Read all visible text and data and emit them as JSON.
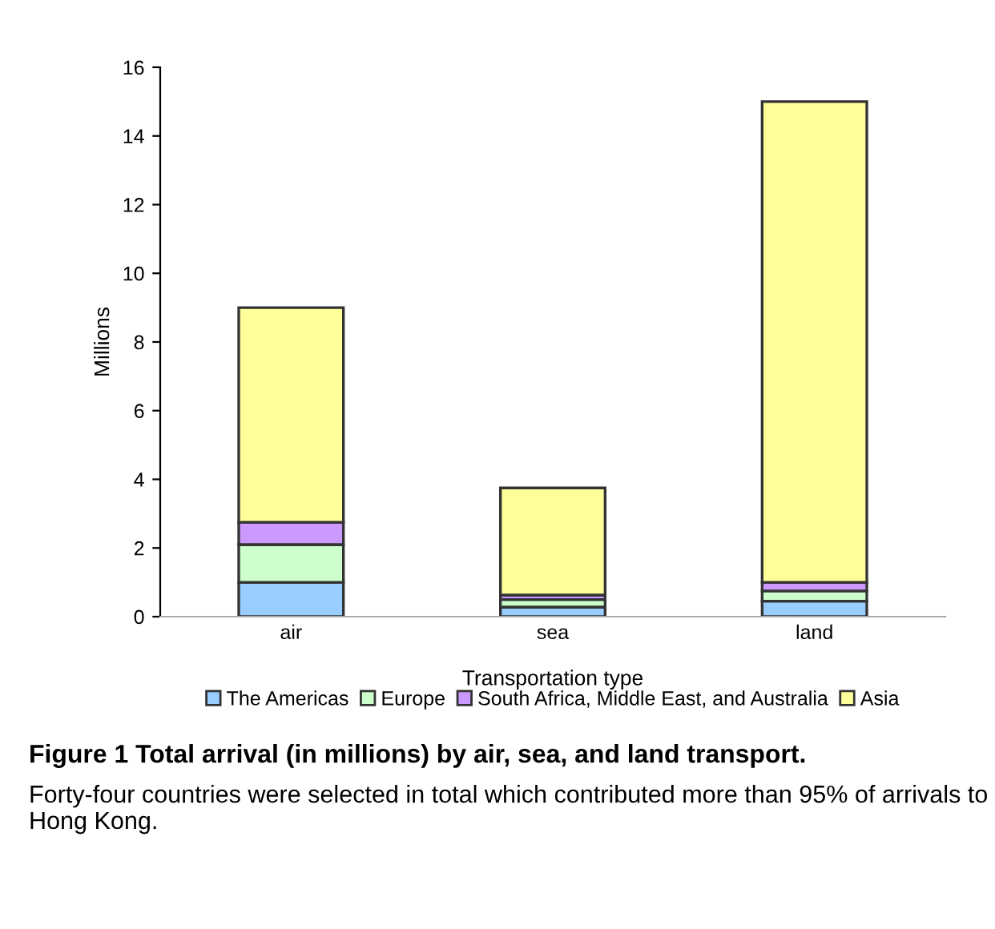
{
  "chart_data": {
    "type": "bar",
    "stacked": true,
    "title": "Figure 1 Total arrival (in millions) by air, sea, and land transport.",
    "annotations": [
      "Forty-four countries were selected in total which contributed more than 95% of arrivals to Hong Kong."
    ],
    "xlabel": "Transportation type",
    "ylabel": "Millions",
    "categories": [
      "air",
      "sea",
      "land"
    ],
    "series": [
      {
        "name": "The Americas",
        "color": "#99ccff",
        "values": [
          1.0,
          0.28,
          0.45
        ]
      },
      {
        "name": "Europe",
        "color": "#ccffcc",
        "values": [
          1.1,
          0.22,
          0.3
        ]
      },
      {
        "name": "South Africa, Middle East, and Australia",
        "color": "#cc99ff",
        "values": [
          0.65,
          0.13,
          0.25
        ]
      },
      {
        "name": "Asia",
        "color": "#ffff99",
        "values": [
          6.25,
          3.12,
          14.0
        ]
      }
    ],
    "ylim": [
      0,
      16
    ],
    "yticks": [
      0,
      2,
      4,
      6,
      8,
      10,
      12,
      14,
      16
    ],
    "grid": false,
    "legend": "bottom"
  }
}
